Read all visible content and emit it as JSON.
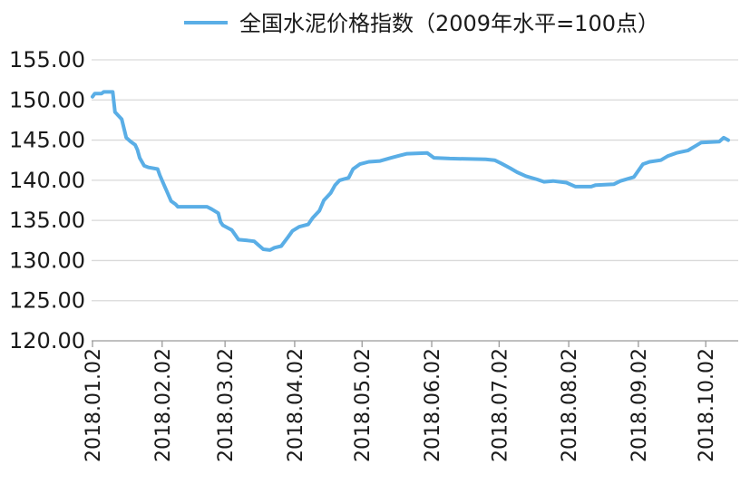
{
  "chart_data": {
    "type": "line",
    "title": "",
    "xlabel": "",
    "ylabel": "",
    "ylim": [
      120,
      155
    ],
    "y_ticks": [
      "120.00",
      "125.00",
      "130.00",
      "135.00",
      "140.00",
      "145.00",
      "150.00",
      "155.00"
    ],
    "x_ticks": [
      "2018.01.02",
      "2018.02.02",
      "2018.03.02",
      "2018.04.02",
      "2018.05.02",
      "2018.06.02",
      "2018.07.02",
      "2018.08.02",
      "2018.09.02",
      "2018.10.02"
    ],
    "x_range": [
      "2018-01-02",
      "2018-10-12"
    ],
    "grid": true,
    "legend_position": "top",
    "colors": {
      "series": "#5aaee6"
    },
    "series": [
      {
        "name": "全国水泥价格指数（2009年水平=100点）",
        "points": [
          [
            "2018-01-02",
            150.4
          ],
          [
            "2018-01-03",
            150.8
          ],
          [
            "2018-01-06",
            150.8
          ],
          [
            "2018-01-07",
            151.0
          ],
          [
            "2018-01-11",
            151.0
          ],
          [
            "2018-01-12",
            148.5
          ],
          [
            "2018-01-15",
            147.6
          ],
          [
            "2018-01-17",
            145.3
          ],
          [
            "2018-01-19",
            144.8
          ],
          [
            "2018-01-21",
            144.4
          ],
          [
            "2018-01-22",
            143.8
          ],
          [
            "2018-01-23",
            142.8
          ],
          [
            "2018-01-25",
            141.8
          ],
          [
            "2018-01-27",
            141.6
          ],
          [
            "2018-01-31",
            141.4
          ],
          [
            "2018-02-01",
            140.6
          ],
          [
            "2018-02-03",
            139.3
          ],
          [
            "2018-02-04",
            138.7
          ],
          [
            "2018-02-06",
            137.4
          ],
          [
            "2018-02-08",
            137.0
          ],
          [
            "2018-02-09",
            136.7
          ],
          [
            "2018-02-22",
            136.7
          ],
          [
            "2018-02-24",
            136.4
          ],
          [
            "2018-02-27",
            135.9
          ],
          [
            "2018-02-28",
            134.8
          ],
          [
            "2018-03-01",
            134.4
          ],
          [
            "2018-03-05",
            133.8
          ],
          [
            "2018-03-06",
            133.4
          ],
          [
            "2018-03-08",
            132.6
          ],
          [
            "2018-03-12",
            132.5
          ],
          [
            "2018-03-15",
            132.4
          ],
          [
            "2018-03-17",
            131.9
          ],
          [
            "2018-03-19",
            131.4
          ],
          [
            "2018-03-22",
            131.3
          ],
          [
            "2018-03-24",
            131.6
          ],
          [
            "2018-03-27",
            131.8
          ],
          [
            "2018-03-30",
            132.9
          ],
          [
            "2018-04-01",
            133.7
          ],
          [
            "2018-04-04",
            134.2
          ],
          [
            "2018-04-08",
            134.5
          ],
          [
            "2018-04-10",
            135.3
          ],
          [
            "2018-04-13",
            136.2
          ],
          [
            "2018-04-15",
            137.5
          ],
          [
            "2018-04-18",
            138.4
          ],
          [
            "2018-04-20",
            139.4
          ],
          [
            "2018-04-22",
            140.0
          ],
          [
            "2018-04-26",
            140.3
          ],
          [
            "2018-04-28",
            141.4
          ],
          [
            "2018-05-01",
            142.0
          ],
          [
            "2018-05-05",
            142.3
          ],
          [
            "2018-05-10",
            142.4
          ],
          [
            "2018-05-15",
            142.8
          ],
          [
            "2018-05-19",
            143.1
          ],
          [
            "2018-05-22",
            143.3
          ],
          [
            "2018-05-31",
            143.4
          ],
          [
            "2018-06-03",
            142.8
          ],
          [
            "2018-06-10",
            142.7
          ],
          [
            "2018-06-26",
            142.6
          ],
          [
            "2018-06-30",
            142.5
          ],
          [
            "2018-07-03",
            142.1
          ],
          [
            "2018-07-07",
            141.5
          ],
          [
            "2018-07-10",
            141.0
          ],
          [
            "2018-07-14",
            140.5
          ],
          [
            "2018-07-19",
            140.1
          ],
          [
            "2018-07-22",
            139.8
          ],
          [
            "2018-07-26",
            139.9
          ],
          [
            "2018-08-01",
            139.7
          ],
          [
            "2018-08-05",
            139.2
          ],
          [
            "2018-08-12",
            139.2
          ],
          [
            "2018-08-14",
            139.4
          ],
          [
            "2018-08-22",
            139.5
          ],
          [
            "2018-08-25",
            139.9
          ],
          [
            "2018-08-31",
            140.4
          ],
          [
            "2018-09-02",
            141.2
          ],
          [
            "2018-09-04",
            142.0
          ],
          [
            "2018-09-07",
            142.3
          ],
          [
            "2018-09-12",
            142.5
          ],
          [
            "2018-09-15",
            143.0
          ],
          [
            "2018-09-19",
            143.4
          ],
          [
            "2018-09-24",
            143.7
          ],
          [
            "2018-09-27",
            144.2
          ],
          [
            "2018-09-30",
            144.7
          ],
          [
            "2018-10-08",
            144.8
          ],
          [
            "2018-10-10",
            145.3
          ],
          [
            "2018-10-12",
            145.0
          ]
        ]
      }
    ]
  }
}
